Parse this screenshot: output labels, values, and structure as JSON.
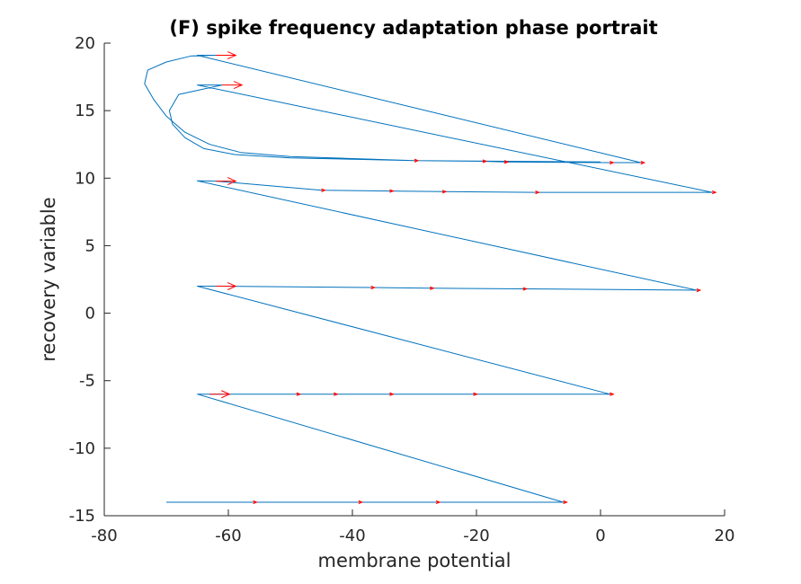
{
  "chart_data": {
    "type": "line",
    "title": "(F) spike frequency adaptation phase portrait",
    "xlabel": "membrane potential",
    "ylabel": "recovery variable",
    "xlim": [
      -80,
      20
    ],
    "ylim": [
      -15,
      20
    ],
    "xticks": [
      -80,
      -60,
      -40,
      -20,
      0,
      20
    ],
    "yticks": [
      -15,
      -10,
      -5,
      0,
      5,
      10,
      15,
      20
    ],
    "grid": false,
    "legend": "none",
    "colors": {
      "trajectory": "#0072BD",
      "arrows": "#FF0000",
      "axes": "#262626"
    },
    "series": [
      {
        "points": [
          [
            -70,
            -14
          ],
          [
            -56,
            -14
          ],
          [
            -39,
            -14
          ],
          [
            -26.5,
            -14
          ],
          [
            -6,
            -14
          ],
          [
            -65,
            -6
          ],
          [
            -63,
            -6
          ],
          [
            -49,
            -6
          ],
          [
            -43,
            -6
          ],
          [
            -34,
            -6
          ],
          [
            -20.5,
            -6
          ],
          [
            1.5,
            -6
          ],
          [
            -65,
            2
          ],
          [
            -62,
            2
          ],
          [
            -37,
            1.9
          ],
          [
            -27.5,
            1.85
          ],
          [
            -12.5,
            1.8
          ],
          [
            15.5,
            1.7
          ],
          [
            -65,
            9.8
          ],
          [
            -62,
            9.78
          ],
          [
            -45,
            9.1
          ],
          [
            -34,
            9.05
          ],
          [
            -25.5,
            9
          ],
          [
            -10.5,
            8.95
          ],
          [
            18,
            8.95
          ],
          [
            -65,
            16.9
          ],
          [
            -61,
            16.9
          ],
          [
            -68,
            16.2
          ],
          [
            -69.5,
            15.0
          ],
          [
            -69,
            14.0
          ],
          [
            -67,
            13.0
          ],
          [
            -64,
            12.2
          ],
          [
            -59,
            11.75
          ],
          [
            -50,
            11.5
          ],
          [
            -40,
            11.4
          ],
          [
            -30,
            11.3
          ],
          [
            -19,
            11.25
          ],
          [
            -15.5,
            11.2
          ],
          [
            1.5,
            11.15
          ],
          [
            6.5,
            11.15
          ],
          [
            -65,
            19.1
          ],
          [
            -62,
            19.1
          ],
          [
            -66,
            19.05
          ],
          [
            -70,
            18.6
          ],
          [
            -73,
            18.0
          ],
          [
            -73.5,
            17.0
          ],
          [
            -72,
            15.8
          ],
          [
            -70,
            14.6
          ],
          [
            -67,
            13.4
          ],
          [
            -63,
            12.5
          ],
          [
            -58,
            11.9
          ],
          [
            -50,
            11.6
          ],
          [
            -40,
            11.45
          ],
          [
            -30,
            11.3
          ],
          [
            0,
            11.2
          ]
        ]
      }
    ],
    "arrows": [
      [
        -56,
        -14
      ],
      [
        -39,
        -14
      ],
      [
        -26.5,
        -14
      ],
      [
        -6,
        -14
      ],
      [
        -63,
        -6
      ],
      [
        -49,
        -6
      ],
      [
        -43,
        -6
      ],
      [
        -34,
        -6
      ],
      [
        -20.5,
        -6
      ],
      [
        1.5,
        -6
      ],
      [
        -62,
        2
      ],
      [
        -37,
        1.9
      ],
      [
        -27.5,
        1.85
      ],
      [
        -12.5,
        1.8
      ],
      [
        15.5,
        1.7
      ],
      [
        -62,
        9.78
      ],
      [
        -45,
        9.1
      ],
      [
        -34,
        9.05
      ],
      [
        -25.5,
        9
      ],
      [
        -10.5,
        8.95
      ],
      [
        18,
        8.95
      ],
      [
        -61,
        16.9
      ],
      [
        -30,
        11.3
      ],
      [
        -19,
        11.25
      ],
      [
        -15.5,
        11.2
      ],
      [
        1.5,
        11.15
      ],
      [
        6.5,
        11.15
      ],
      [
        -62,
        19.1
      ]
    ]
  }
}
